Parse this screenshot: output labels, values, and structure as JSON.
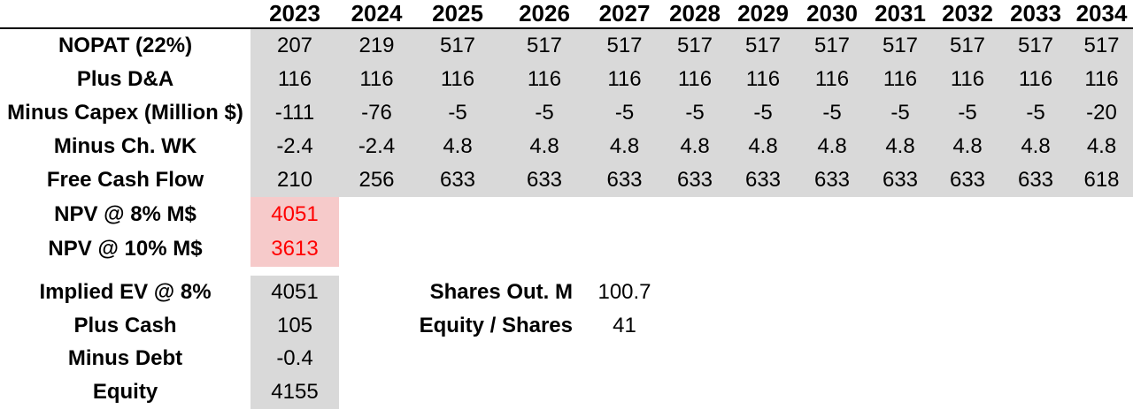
{
  "table": {
    "years": [
      "2023",
      "2024",
      "2025",
      "2026",
      "2027",
      "2028",
      "2029",
      "2030",
      "2031",
      "2032",
      "2033",
      "2034"
    ],
    "rows": [
      {
        "label": "NOPAT (22%)",
        "values": [
          "207",
          "219",
          "517",
          "517",
          "517",
          "517",
          "517",
          "517",
          "517",
          "517",
          "517",
          "517"
        ]
      },
      {
        "label": "Plus D&A",
        "values": [
          "116",
          "116",
          "116",
          "116",
          "116",
          "116",
          "116",
          "116",
          "116",
          "116",
          "116",
          "116"
        ]
      },
      {
        "label": "Minus Capex (Million $)",
        "values": [
          "-111",
          "-76",
          "-5",
          "-5",
          "-5",
          "-5",
          "-5",
          "-5",
          "-5",
          "-5",
          "-5",
          "-20"
        ]
      },
      {
        "label": "Minus Ch. WK",
        "values": [
          "-2.4",
          "-2.4",
          "4.8",
          "4.8",
          "4.8",
          "4.8",
          "4.8",
          "4.8",
          "4.8",
          "4.8",
          "4.8",
          "4.8"
        ]
      },
      {
        "label": "Free Cash Flow",
        "values": [
          "210",
          "256",
          "633",
          "633",
          "633",
          "633",
          "633",
          "633",
          "633",
          "633",
          "633",
          "618"
        ]
      }
    ],
    "npv_rows": [
      {
        "label": "NPV @ 8% M$",
        "value": "4051"
      },
      {
        "label": "NPV @ 10% M$",
        "value": "3613"
      }
    ],
    "equity_rows": [
      {
        "label": "Implied EV @ 8%",
        "value": "4051"
      },
      {
        "label": "Plus Cash",
        "value": "105"
      },
      {
        "label": "Minus Debt",
        "value": "-0.4"
      },
      {
        "label": "Equity",
        "value": "4155"
      }
    ],
    "side_stats": [
      {
        "label": "Shares Out. M",
        "value": "100.7"
      },
      {
        "label": "Equity / Shares",
        "value": "41"
      }
    ]
  },
  "colors": {
    "cell_bg": "#d9d9d9",
    "highlight_bg": "#f6caca",
    "highlight_text": "#ff0000"
  }
}
